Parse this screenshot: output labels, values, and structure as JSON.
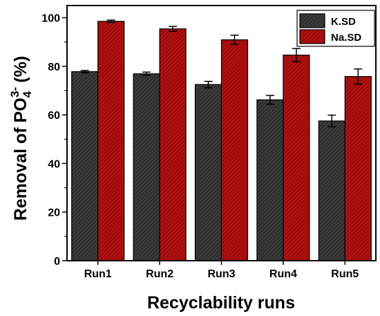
{
  "chart_data": {
    "type": "bar",
    "categories": [
      "Run1",
      "Run2",
      "Run3",
      "Run4",
      "Run5"
    ],
    "series": [
      {
        "name": "K.SD",
        "values": [
          77.8,
          76.9,
          72.5,
          66.2,
          57.5
        ],
        "errors": [
          0.5,
          0.7,
          1.3,
          1.8,
          2.4
        ],
        "color": "#3a3a3a"
      },
      {
        "name": "Na.SD",
        "values": [
          98.5,
          95.4,
          90.9,
          84.6,
          75.8
        ],
        "errors": [
          0.5,
          1.0,
          1.9,
          2.7,
          3.1
        ],
        "color": "#b31010"
      }
    ],
    "xlabel": "Recyclability runs",
    "ylabel": {
      "prefix": "Removal of PO",
      "subscript": "4",
      "superscript": "3-",
      "suffix": "(%)"
    },
    "ylim": [
      0,
      105
    ],
    "yticks": [
      0,
      20,
      40,
      60,
      80,
      100
    ],
    "legend_position": "top-right",
    "grid": false
  }
}
